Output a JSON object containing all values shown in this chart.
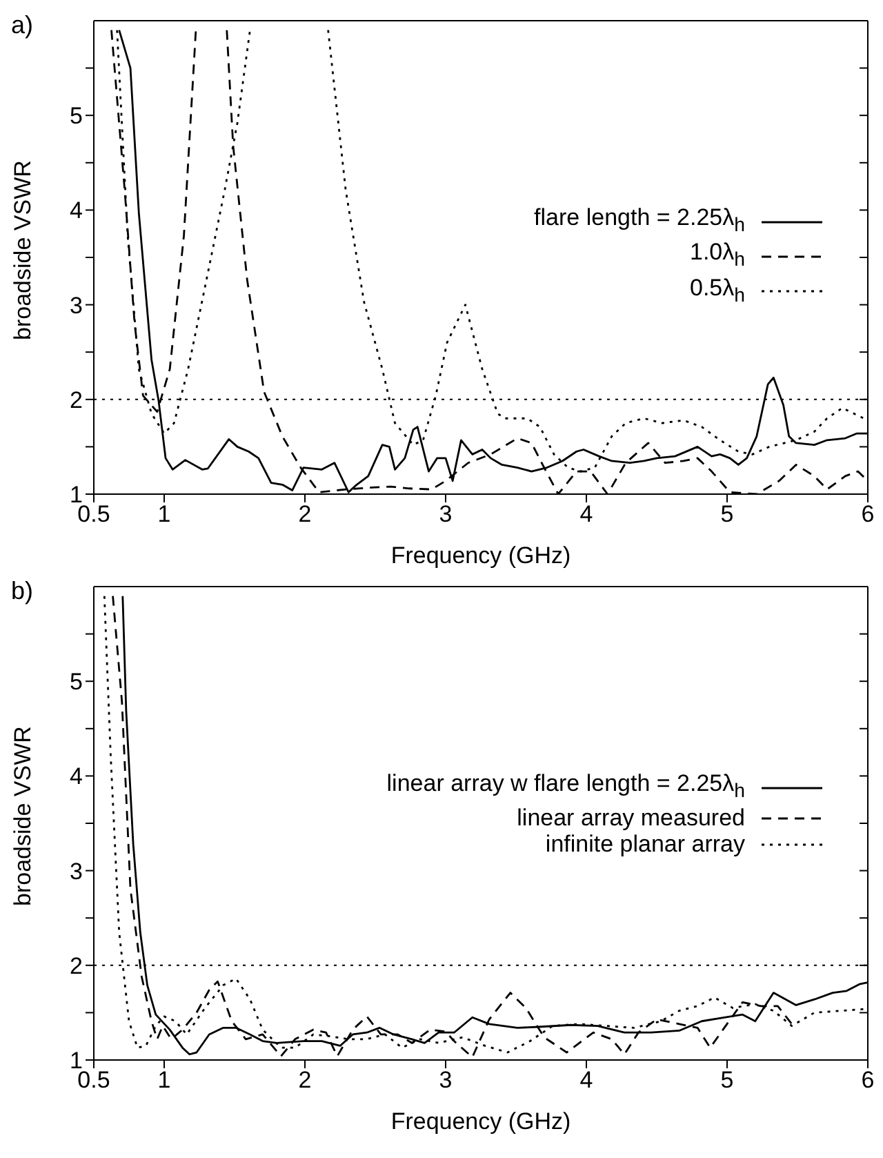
{
  "chart_data": [
    {
      "type": "line",
      "xlabel": "Frequency (GHz)",
      "ylabel": "broadside VSWR",
      "annotations": [
        "a)"
      ],
      "xlim": [
        0.5,
        6
      ],
      "xticks": [
        0.5,
        1,
        2,
        3,
        4,
        5,
        6
      ],
      "ylim": [
        1,
        6
      ],
      "yticks": [
        1,
        {
          "value": 1.5,
          "label": null
        },
        2,
        {
          "value": 2.5,
          "label": null
        },
        3,
        {
          "value": 3.5,
          "label": null
        },
        4,
        {
          "value": 4.5,
          "label": null
        },
        5,
        {
          "value": 5.5,
          "label": null
        }
      ],
      "legend": "right",
      "marker": "none",
      "ref_lines": [
        {
          "axis": "y",
          "value": 2,
          "label": null,
          "color": "#000000",
          "line_style": "dotted"
        }
      ],
      "series": [
        {
          "name": "flare length = 2.25λ$_{h}$",
          "color": "#000000",
          "line_style": "solid",
          "x": [
            0.68,
            0.76,
            0.82,
            0.91,
            0.96,
            1.01,
            1.06,
            1.15,
            1.27,
            1.31,
            1.46,
            1.52,
            1.6,
            1.67,
            1.76,
            1.84,
            1.91,
            1.99,
            2.05,
            2.12,
            2.21,
            2.31,
            2.36,
            2.45,
            2.55,
            2.6,
            2.64,
            2.71,
            2.77,
            2.8,
            2.88,
            2.94,
            3.0,
            3.05,
            3.11,
            3.19,
            3.26,
            3.32,
            3.4,
            3.51,
            3.61,
            3.72,
            3.83,
            3.93,
            3.98,
            4.09,
            4.18,
            4.31,
            4.41,
            4.5,
            4.63,
            4.79,
            4.89,
            4.95,
            5.02,
            5.08,
            5.14,
            5.21,
            5.29,
            5.33,
            5.4,
            5.44,
            5.49,
            5.62,
            5.71,
            5.84,
            5.92,
            6.0
          ],
          "values": [
            5.9,
            5.5,
            3.97,
            2.42,
            1.99,
            1.38,
            1.26,
            1.36,
            1.26,
            1.27,
            1.58,
            1.5,
            1.45,
            1.38,
            1.12,
            1.1,
            1.04,
            1.28,
            1.27,
            1.26,
            1.33,
            1.02,
            1.09,
            1.19,
            1.52,
            1.5,
            1.26,
            1.38,
            1.68,
            1.71,
            1.24,
            1.38,
            1.38,
            1.14,
            1.57,
            1.42,
            1.47,
            1.38,
            1.31,
            1.28,
            1.24,
            1.28,
            1.35,
            1.45,
            1.47,
            1.4,
            1.35,
            1.33,
            1.35,
            1.38,
            1.4,
            1.5,
            1.4,
            1.42,
            1.38,
            1.31,
            1.38,
            1.61,
            2.16,
            2.23,
            1.94,
            1.61,
            1.54,
            1.52,
            1.57,
            1.59,
            1.64,
            1.64
          ]
        },
        {
          "name": "1.0λ$_{h}$",
          "color": "#000000",
          "line_style": "dashed",
          "x": [
            0.625,
            0.72,
            0.79,
            0.85,
            0.95,
            1.04,
            1.14,
            1.225,
            1.33,
            1.445,
            1.49,
            1.59,
            1.71,
            1.84,
            1.97,
            2.1,
            2.29,
            2.48,
            2.61,
            2.74,
            2.9,
            3.0,
            3.16,
            3.32,
            3.51,
            3.61,
            3.7,
            3.8,
            3.93,
            4.03,
            4.15,
            4.28,
            4.44,
            4.56,
            4.69,
            4.79,
            4.89,
            5.02,
            5.21,
            5.37,
            5.49,
            5.62,
            5.71,
            5.84,
            5.93,
            6.0
          ],
          "values": [
            5.9,
            4.2,
            2.8,
            2.04,
            1.87,
            2.32,
            3.73,
            5.9,
            null,
            5.9,
            4.68,
            3.26,
            2.08,
            1.61,
            1.28,
            1.02,
            1.05,
            1.07,
            1.08,
            1.06,
            1.05,
            1.14,
            1.33,
            1.42,
            1.59,
            1.54,
            1.28,
            1.0,
            1.24,
            1.24,
            1.0,
            1.33,
            1.54,
            1.33,
            1.35,
            1.38,
            1.24,
            1.02,
            1.0,
            1.14,
            1.31,
            1.19,
            1.05,
            1.19,
            1.24,
            1.14
          ]
        },
        {
          "name": "0.5λ$_{h}$",
          "color": "#000000",
          "line_style": "dotted",
          "x": [
            0.665,
            0.74,
            0.82,
            0.91,
            1.0,
            1.07,
            1.17,
            1.3,
            1.43,
            1.52,
            1.61,
            1.9,
            2.165,
            2.29,
            2.42,
            2.55,
            2.64,
            2.77,
            2.84,
            2.93,
            3.01,
            3.14,
            3.26,
            3.37,
            3.42,
            3.58,
            3.67,
            3.77,
            3.87,
            3.96,
            4.06,
            4.18,
            4.28,
            4.41,
            4.54,
            4.69,
            4.82,
            4.95,
            5.08,
            5.18,
            5.3,
            5.49,
            5.62,
            5.71,
            5.82,
            6.0
          ],
          "values": [
            5.9,
            3.74,
            2.32,
            1.85,
            1.64,
            1.75,
            2.32,
            3.26,
            4.21,
            4.92,
            5.9,
            null,
            5.9,
            4.21,
            3.03,
            2.32,
            1.75,
            1.52,
            1.57,
            2.04,
            2.6,
            3.0,
            2.32,
            1.85,
            1.8,
            1.8,
            1.71,
            1.42,
            1.28,
            1.24,
            1.28,
            1.61,
            1.75,
            1.8,
            1.75,
            1.78,
            1.71,
            1.57,
            1.45,
            1.42,
            1.5,
            1.57,
            1.66,
            1.8,
            1.91,
            1.78
          ]
        }
      ]
    },
    {
      "type": "line",
      "xlabel": "Frequency (GHz)",
      "ylabel": "broadside VSWR",
      "annotations": [
        "b)"
      ],
      "xlim": [
        0.5,
        6
      ],
      "xticks": [
        0.5,
        1,
        2,
        3,
        4,
        5,
        6
      ],
      "ylim": [
        1,
        6
      ],
      "yticks": [
        1,
        {
          "value": 1.5,
          "label": null
        },
        2,
        {
          "value": 2.5,
          "label": null
        },
        3,
        {
          "value": 3.5,
          "label": null
        },
        4,
        {
          "value": 4.5,
          "label": null
        },
        5,
        {
          "value": 5.5,
          "label": null
        }
      ],
      "legend": "right",
      "marker": "none",
      "ref_lines": [
        {
          "axis": "y",
          "value": 2,
          "label": null,
          "color": "#000000",
          "line_style": "dotted"
        }
      ],
      "series": [
        {
          "name": "linear array w flare length = 2.25λ$_{h}$",
          "color": "#000000",
          "line_style": "solid",
          "x": [
            0.705,
            0.73,
            0.78,
            0.83,
            0.88,
            0.94,
            1.04,
            1.13,
            1.18,
            1.23,
            1.32,
            1.42,
            1.51,
            1.61,
            1.7,
            1.8,
            1.9,
            1.99,
            2.12,
            2.25,
            2.34,
            2.44,
            2.53,
            2.63,
            2.76,
            2.85,
            2.95,
            3.06,
            3.19,
            3.31,
            3.51,
            3.66,
            3.89,
            4.08,
            4.27,
            4.46,
            4.66,
            4.82,
            4.98,
            5.11,
            5.2,
            5.33,
            5.49,
            5.62,
            5.75,
            5.85,
            5.94,
            6.0
          ],
          "values": [
            5.9,
            4.68,
            3.28,
            2.35,
            1.79,
            1.48,
            1.32,
            1.13,
            1.06,
            1.08,
            1.27,
            1.34,
            1.34,
            1.27,
            1.2,
            1.18,
            1.19,
            1.2,
            1.2,
            1.15,
            1.27,
            1.29,
            1.34,
            1.27,
            1.22,
            1.18,
            1.29,
            1.29,
            1.45,
            1.38,
            1.34,
            1.35,
            1.37,
            1.36,
            1.29,
            1.29,
            1.31,
            1.41,
            1.45,
            1.48,
            1.41,
            1.71,
            1.58,
            1.64,
            1.71,
            1.73,
            1.8,
            1.82
          ]
        },
        {
          "name": "linear array measured",
          "color": "#000000",
          "line_style": "dashed",
          "x": [
            0.635,
            0.7,
            0.76,
            0.84,
            0.91,
            0.95,
            0.99,
            1.05,
            1.13,
            1.23,
            1.32,
            1.38,
            1.48,
            1.58,
            1.7,
            1.83,
            1.93,
            2.06,
            2.15,
            2.23,
            2.34,
            2.44,
            2.54,
            2.66,
            2.76,
            2.89,
            3.0,
            3.06,
            3.19,
            3.31,
            3.46,
            3.57,
            3.7,
            3.86,
            4.05,
            4.18,
            4.27,
            4.37,
            4.5,
            4.66,
            4.79,
            4.88,
            4.98,
            5.11,
            5.24,
            5.36,
            5.46
          ],
          "values": [
            5.9,
            4.78,
            2.81,
            1.88,
            1.41,
            1.22,
            1.36,
            1.22,
            1.32,
            1.5,
            1.74,
            1.83,
            1.41,
            1.22,
            1.27,
            1.04,
            1.22,
            1.32,
            1.29,
            1.04,
            1.32,
            1.46,
            1.27,
            1.27,
            1.18,
            1.32,
            1.3,
            1.2,
            1.03,
            1.43,
            1.71,
            1.55,
            1.24,
            1.08,
            1.29,
            1.22,
            1.06,
            1.29,
            1.43,
            1.38,
            1.34,
            1.13,
            1.34,
            1.61,
            1.57,
            1.57,
            1.38
          ]
        },
        {
          "name": "infinite planar array",
          "color": "#000000",
          "line_style": "dotted",
          "x": [
            0.575,
            0.62,
            0.68,
            0.75,
            0.81,
            0.87,
            0.94,
            1.0,
            1.08,
            1.16,
            1.29,
            1.42,
            1.51,
            1.61,
            1.7,
            1.83,
            1.93,
            2.06,
            2.18,
            2.31,
            2.44,
            2.57,
            2.69,
            2.82,
            2.95,
            3.12,
            3.28,
            3.44,
            3.6,
            3.76,
            3.95,
            4.14,
            4.34,
            4.53,
            4.66,
            4.79,
            4.91,
            5.04,
            5.2,
            5.33,
            5.46,
            5.62,
            5.81,
            6.0
          ],
          "values": [
            5.9,
            4.21,
            2.35,
            1.41,
            1.13,
            1.15,
            1.36,
            1.46,
            1.41,
            1.27,
            1.55,
            1.79,
            1.86,
            1.64,
            1.32,
            1.13,
            1.13,
            1.27,
            1.25,
            1.22,
            1.22,
            1.27,
            1.13,
            1.22,
            1.18,
            1.24,
            1.15,
            1.08,
            1.2,
            1.36,
            1.38,
            1.36,
            1.34,
            1.41,
            1.52,
            1.57,
            1.66,
            1.55,
            1.59,
            1.52,
            1.36,
            1.5,
            1.52,
            1.54
          ]
        }
      ]
    }
  ]
}
